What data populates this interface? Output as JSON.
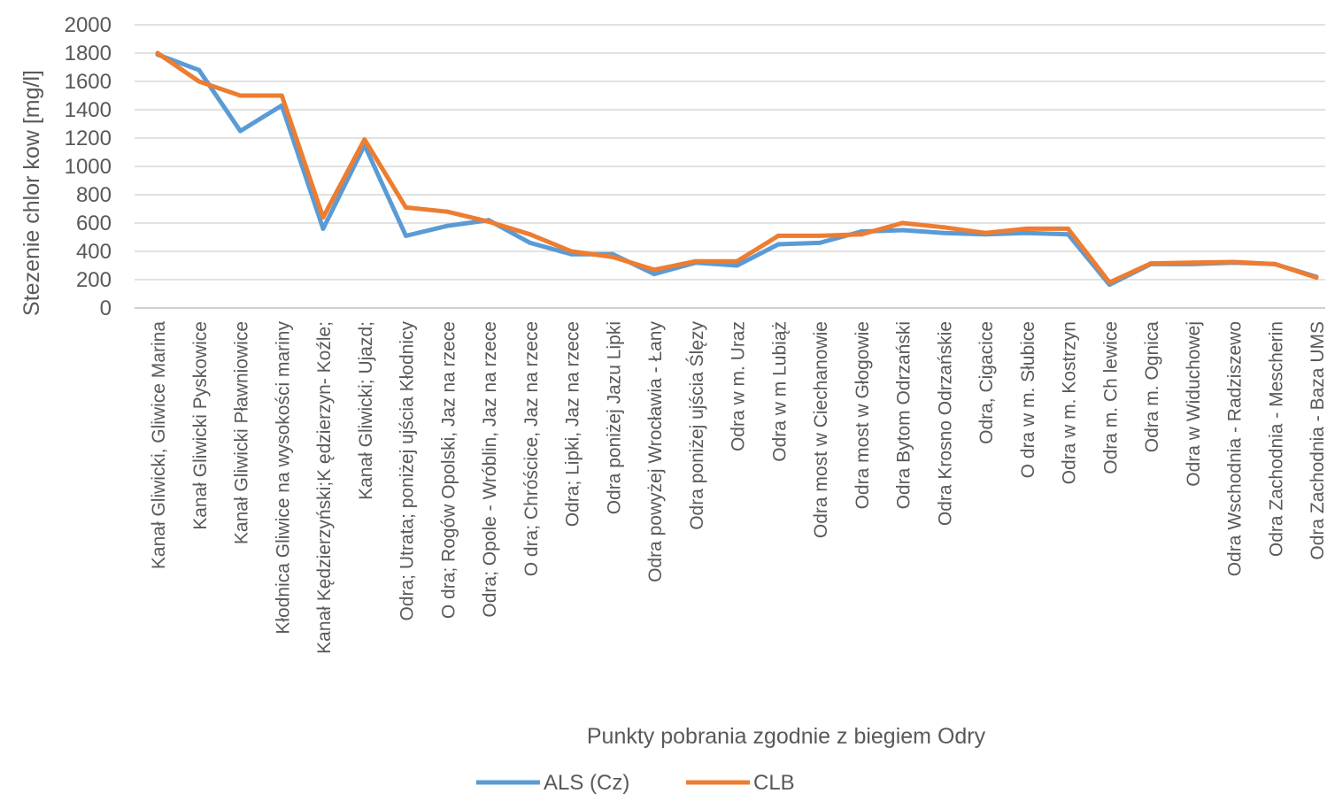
{
  "chart_data": {
    "type": "line",
    "title": "",
    "xlabel": "Punkty pobrania zgodnie z  biegiem Odry",
    "ylabel": "Stezenie  chlor kow [mg/l]",
    "ylim": [
      0,
      2000
    ],
    "yticks": [
      0,
      200,
      400,
      600,
      800,
      1000,
      1200,
      1400,
      1600,
      1800,
      2000
    ],
    "grid": true,
    "legend_position": "bottom",
    "categories": [
      "Kanał Gliwicki, Gliwice Marina",
      "Kanał Gliwicki Pyskowice",
      "Kanał Gliwicki Pławniowice",
      "Kłodnica Gliwice na wysokości mariny",
      "Kanał Kędzierzyński;K ędzierzyn- Koźle;",
      "Kanał Gliwicki;  Ujazd;",
      "Odra; Utrata; poniżej ujścia Kłodnicy",
      "O dra; Rogów Opolski, Jaz na rzece",
      "Odra; Opole - Wróblin, Jaz na rzece",
      "O dra; Chróścice, Jaz na rzece",
      "Odra;  Lipki,   Jaz na rzece",
      "Odra poniżej Jazu Lipki",
      "Odra powyżej Wrocławia - Łany",
      "Odra  poniżej  ujścia Ślęzy",
      "Odra w m. Uraz",
      "Odra w m Lubiąż",
      "Odra most w Ciechanowie",
      "Odra most w Głogowie",
      "Odra  Bytom Odrzański",
      "Odra  Krosno Odrzańskie",
      "Odra,  Cigacice",
      "O dra  w m. Słubice",
      "Odra w m. Kostrzyn",
      "Odra  m. Ch lewice",
      "Odra  m. Ognica",
      "Odra  w Widuchowej",
      "Odra Wschodnia - Radziszewo",
      "Odra Zachodnia - Mescherin",
      "Odra Zachodnia  - Baza UMS"
    ],
    "series": [
      {
        "name": "ALS (Cz)",
        "color": "#5b9bd5",
        "values": [
          1790,
          1680,
          1250,
          1430,
          560,
          1150,
          510,
          580,
          620,
          460,
          380,
          380,
          240,
          320,
          300,
          450,
          460,
          540,
          550,
          530,
          520,
          530,
          520,
          165,
          310,
          310,
          320,
          310,
          220
        ]
      },
      {
        "name": "CLB",
        "color": "#ed7d31",
        "values": [
          1800,
          1600,
          1500,
          1500,
          640,
          1190,
          710,
          680,
          610,
          520,
          400,
          360,
          270,
          330,
          330,
          510,
          510,
          520,
          600,
          570,
          530,
          560,
          560,
          180,
          315,
          320,
          325,
          310,
          215
        ]
      }
    ]
  }
}
